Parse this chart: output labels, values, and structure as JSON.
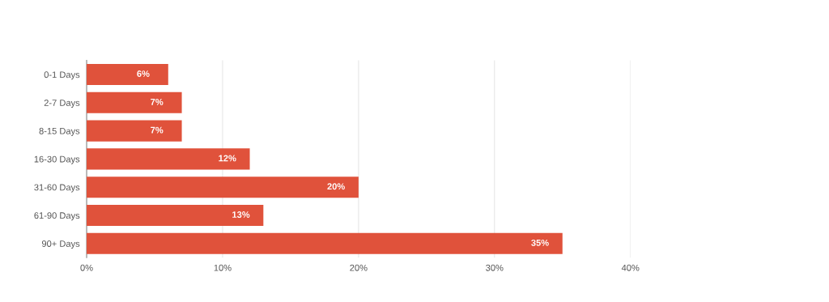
{
  "chart_data": {
    "type": "bar",
    "orientation": "horizontal",
    "categories": [
      "0-1 Days",
      "2-7 Days",
      "8-15 Days",
      "16-30 Days",
      "31-60 Days",
      "61-90 Days",
      "90+ Days"
    ],
    "values": [
      6,
      7,
      7,
      12,
      20,
      13,
      35
    ],
    "value_labels": [
      "6%",
      "7%",
      "7%",
      "12%",
      "20%",
      "13%",
      "35%"
    ],
    "color": "#e0523b",
    "xlim": [
      0,
      40
    ],
    "xticks": [
      {
        "value": 0,
        "label": "0%"
      },
      {
        "value": 10,
        "label": "10%"
      },
      {
        "value": 20,
        "label": "20%"
      },
      {
        "value": 30,
        "label": "30%"
      },
      {
        "value": 40,
        "label": "40%"
      }
    ],
    "grid": "x",
    "legend": false
  }
}
